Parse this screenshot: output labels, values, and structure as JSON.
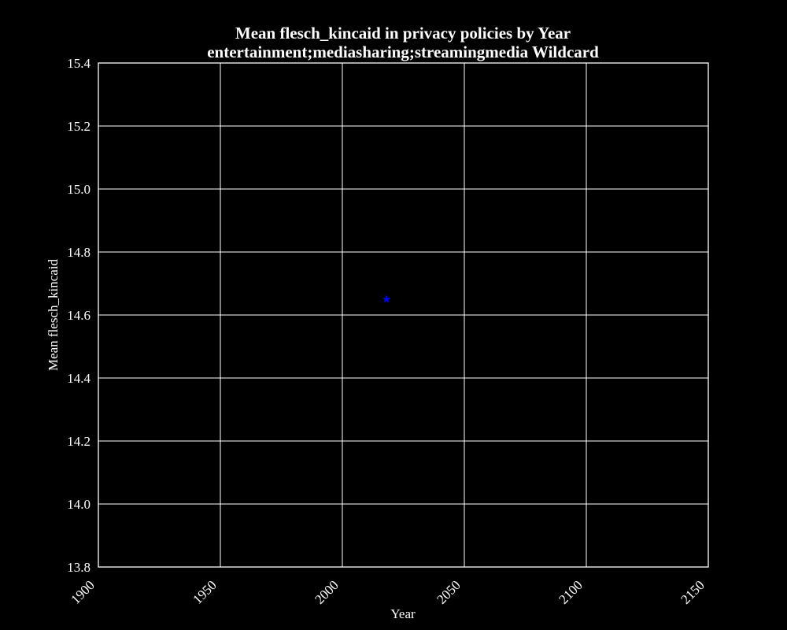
{
  "chart_data": {
    "type": "scatter",
    "title": "Mean flesch_kincaid in privacy policies by Year",
    "subtitle": "entertainment;mediasharing;streamingmedia Wildcard",
    "xlabel": "Year",
    "ylabel": "Mean flesch_kincaid",
    "xlim": [
      1900,
      2150
    ],
    "ylim": [
      13.8,
      15.4
    ],
    "x_ticks": [
      1900,
      1950,
      2000,
      2050,
      2100,
      2150
    ],
    "x_tick_labels": [
      "1900",
      "1950",
      "2000",
      "2050",
      "2100",
      "2150"
    ],
    "y_ticks": [
      13.8,
      14.0,
      14.2,
      14.4,
      14.6,
      14.8,
      15.0,
      15.2,
      15.4
    ],
    "y_tick_labels": [
      "13.8",
      "14.0",
      "14.2",
      "14.4",
      "14.6",
      "14.8",
      "15.0",
      "15.2",
      "15.4"
    ],
    "grid": true,
    "marker": "star",
    "series": [
      {
        "points": [
          {
            "x": 2018,
            "y": 14.65
          }
        ],
        "color": "#0000ff"
      }
    ],
    "colors": {
      "background": "#000000",
      "foreground": "#ffffff",
      "grid": "#ffffff"
    }
  }
}
